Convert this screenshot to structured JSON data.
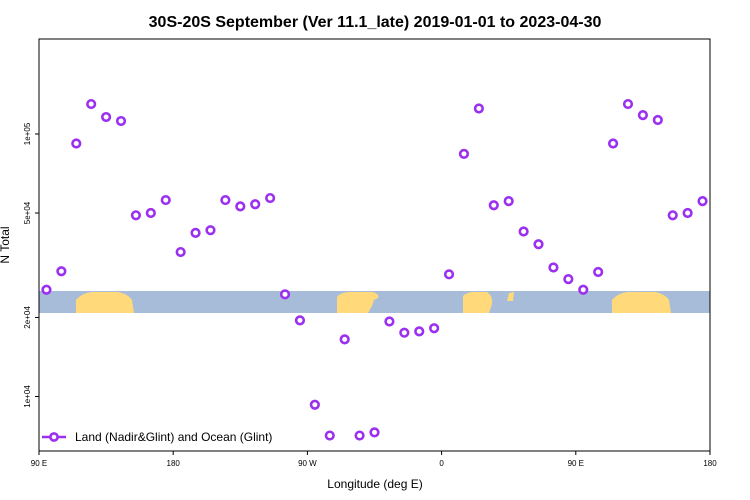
{
  "chart_data": {
    "type": "scatter",
    "title": "30S-20S September (Ver 11.1_late)   2019-01-01 to 2023-04-30",
    "xlabel": "Longitude (deg E)",
    "ylabel": "N Total",
    "xlim": [
      90,
      540
    ],
    "y_scale": "log",
    "ylim": [
      6200,
      230000
    ],
    "x_ticks": [
      {
        "value": 90,
        "label": "90 E"
      },
      {
        "value": 180,
        "label": "180"
      },
      {
        "value": 270,
        "label": "90 W"
      },
      {
        "value": 360,
        "label": "0"
      },
      {
        "value": 450,
        "label": "90 E"
      },
      {
        "value": 540,
        "label": "180"
      }
    ],
    "y_ticks": [
      {
        "value": 10000,
        "label": "1e+04"
      },
      {
        "value": 20000,
        "label": "2e+04"
      },
      {
        "value": 50000,
        "label": "5e+04"
      },
      {
        "value": 100000,
        "label": "1e+05"
      }
    ],
    "legend": {
      "position": "bottom-left"
    },
    "series": [
      {
        "name": "Land (Nadir&Glint) and Ocean (Glint)",
        "color": "#9b30f0",
        "x": [
          95,
          105,
          115,
          125,
          135,
          145,
          155,
          165,
          175,
          185,
          195,
          205,
          215,
          225,
          235,
          245,
          255,
          265,
          275,
          285,
          295,
          305,
          315,
          325,
          335,
          345,
          355,
          365,
          375,
          385,
          395,
          405,
          415,
          425,
          435,
          445,
          455,
          465,
          475,
          485,
          495,
          505,
          515,
          525,
          535
        ],
        "y": [
          25500,
          30000,
          92000,
          130000,
          116000,
          112000,
          49000,
          50000,
          56000,
          35500,
          42000,
          43000,
          56000,
          53000,
          54000,
          57000,
          24500,
          19500,
          9300,
          7100,
          16500,
          7100,
          7300,
          19300,
          17500,
          17700,
          18200,
          29200,
          84000,
          125000,
          53500,
          55500,
          42500,
          38000,
          31000,
          28000,
          25500,
          29800,
          92000,
          130000,
          118000,
          113000,
          49000,
          50000,
          55500
        ]
      }
    ]
  }
}
